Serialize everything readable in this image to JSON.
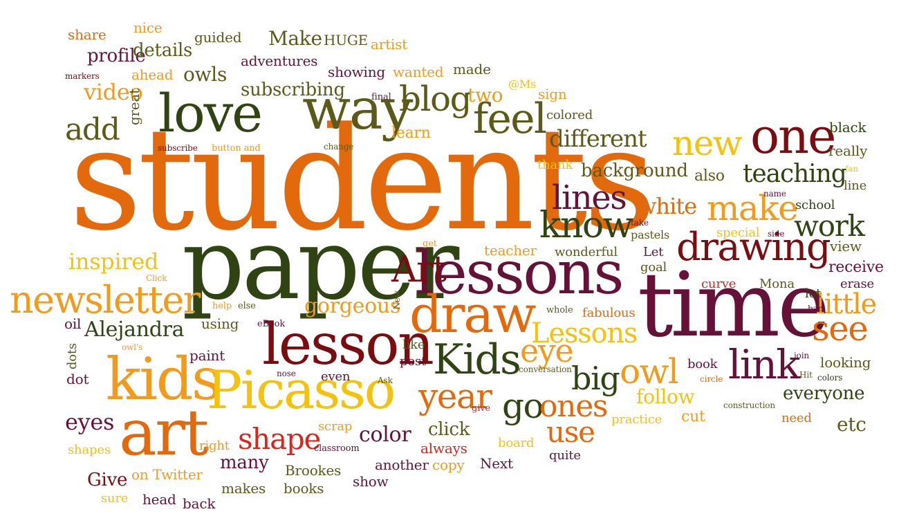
{
  "palette": {
    "orange": "#e36a0c",
    "amber": "#f19a1c",
    "yellow": "#f4c20c",
    "maroon": "#661238",
    "darkred": "#7a0d10",
    "olive": "#5c5a18",
    "darkgreen": "#2f4412",
    "red": "#d8261c"
  },
  "words": [
    {
      "t": "students",
      "c": "#e36a0c"
    },
    {
      "t": "paper",
      "c": "#2f4412"
    },
    {
      "t": "time",
      "c": "#661238"
    },
    {
      "t": "lessons",
      "c": "#661238"
    },
    {
      "t": "lesson",
      "c": "#7a0d10"
    },
    {
      "t": "art",
      "c": "#e36a0c"
    },
    {
      "t": "kids",
      "c": "#f19a1c"
    },
    {
      "t": "Picasso",
      "c": "#f4c20c"
    },
    {
      "t": "love",
      "c": "#2f4412"
    },
    {
      "t": "way",
      "c": "#5c5a18"
    },
    {
      "t": "draw",
      "c": "#e36a0c"
    },
    {
      "t": "drawing",
      "c": "#7a0d10"
    },
    {
      "t": "one",
      "c": "#7a0d10"
    },
    {
      "t": "Kids",
      "c": "#2f4412"
    },
    {
      "t": "Art",
      "c": "#7a0d10"
    },
    {
      "t": "newsletter",
      "c": "#f19a1c"
    },
    {
      "t": "blog",
      "c": "#5c5a18"
    },
    {
      "t": "feel",
      "c": "#5c5a18"
    },
    {
      "t": "new",
      "c": "#f4c20c"
    },
    {
      "t": "make",
      "c": "#f19a1c"
    },
    {
      "t": "know",
      "c": "#2f4412"
    },
    {
      "t": "link",
      "c": "#661238"
    },
    {
      "t": "lines",
      "c": "#661238"
    },
    {
      "t": "owl",
      "c": "#f19a1c"
    },
    {
      "t": "year",
      "c": "#e36a0c"
    },
    {
      "t": "go",
      "c": "#2f4412"
    },
    {
      "t": "ones",
      "c": "#e36a0c"
    },
    {
      "t": "see",
      "c": "#e36a0c"
    },
    {
      "t": "eye",
      "c": "#f19a1c"
    },
    {
      "t": "big",
      "c": "#2f4412"
    },
    {
      "t": "shape",
      "c": "#d8261c"
    },
    {
      "t": "Lessons",
      "c": "#f4c20c"
    },
    {
      "t": "little",
      "c": "#f19a1c"
    },
    {
      "t": "work",
      "c": "#2f4412"
    },
    {
      "t": "add",
      "c": "#5c5a18"
    },
    {
      "t": "use",
      "c": "#e36a0c"
    },
    {
      "t": "teaching",
      "c": "#2f4412"
    },
    {
      "t": "white",
      "c": "#e36a0c"
    },
    {
      "t": "different",
      "c": "#5c5a18"
    },
    {
      "t": "video",
      "c": "#f19a1c"
    },
    {
      "t": "inspired",
      "c": "#f4c20c"
    },
    {
      "t": "Alejandra",
      "c": "#2f4412"
    },
    {
      "t": "gorgeous",
      "c": "#f19a1c"
    },
    {
      "t": "eyes",
      "c": "#661238"
    },
    {
      "t": "color",
      "c": "#661238"
    },
    {
      "t": "background",
      "c": "#5c5a18"
    },
    {
      "t": "follow",
      "c": "#f4c20c"
    },
    {
      "t": "everyone",
      "c": "#2f4412"
    },
    {
      "t": "receive",
      "c": "#661238"
    },
    {
      "t": "owls",
      "c": "#5c5a18"
    },
    {
      "t": "subscribing",
      "c": "#5c5a18"
    },
    {
      "t": "profile",
      "c": "#661238"
    },
    {
      "t": "details",
      "c": "#5c5a18"
    },
    {
      "t": "Make",
      "c": "#5c5a18"
    },
    {
      "t": "HUGE",
      "c": "#5c5a18"
    },
    {
      "t": "artist",
      "c": "#f19a1c"
    },
    {
      "t": "share",
      "c": "#e36a0c"
    },
    {
      "t": "nice",
      "c": "#f19a1c"
    },
    {
      "t": "guided",
      "c": "#5c5a18"
    },
    {
      "t": "adventures",
      "c": "#661238"
    },
    {
      "t": "showing",
      "c": "#661238"
    },
    {
      "t": "wanted",
      "c": "#f19a1c"
    },
    {
      "t": "made",
      "c": "#5c5a18"
    },
    {
      "t": "markers",
      "c": "#7a0d10"
    },
    {
      "t": "ahead",
      "c": "#f19a1c"
    },
    {
      "t": "final",
      "c": "#661238"
    },
    {
      "t": "two",
      "c": "#f19a1c"
    },
    {
      "t": "@Ms",
      "c": "#f4c20c"
    },
    {
      "t": "sign",
      "c": "#f19a1c"
    },
    {
      "t": "great",
      "c": "#5c5a18"
    },
    {
      "t": "learn",
      "c": "#f19a1c"
    },
    {
      "t": "colored",
      "c": "#5c5a18"
    },
    {
      "t": "subscribe",
      "c": "#7a0d10"
    },
    {
      "t": "button and",
      "c": "#f19a1c"
    },
    {
      "t": "change",
      "c": "#5c5a18"
    },
    {
      "t": "black",
      "c": "#2f4412"
    },
    {
      "t": "really",
      "c": "#5c5a18"
    },
    {
      "t": "thank",
      "c": "#f4c20c"
    },
    {
      "t": "also",
      "c": "#5c5a18"
    },
    {
      "t": "fan",
      "c": "#f4c20c"
    },
    {
      "t": "line",
      "c": "#5c5a18"
    },
    {
      "t": "name",
      "c": "#661238"
    },
    {
      "t": "school",
      "c": "#2f4412"
    },
    {
      "t": "take",
      "c": "#661238"
    },
    {
      "t": "pastels",
      "c": "#5c5a18"
    },
    {
      "t": "special",
      "c": "#f4c20c"
    },
    {
      "t": "side",
      "c": "#661238"
    },
    {
      "t": "get",
      "c": "#f19a1c"
    },
    {
      "t": "teacher",
      "c": "#f19a1c"
    },
    {
      "t": "wonderful",
      "c": "#5c5a18"
    },
    {
      "t": "Let",
      "c": "#661238"
    },
    {
      "t": "goal",
      "c": "#5c5a18"
    },
    {
      "t": "view",
      "c": "#5c5a18"
    },
    {
      "t": "Click",
      "c": "#f19a1c"
    },
    {
      "t": "New",
      "c": "#5c5a18"
    },
    {
      "t": "curve",
      "c": "#d8261c"
    },
    {
      "t": "Mona",
      "c": "#5c5a18"
    },
    {
      "t": "erase",
      "c": "#661238"
    },
    {
      "t": "let",
      "c": "#2f4412"
    },
    {
      "t": "bar",
      "c": "#661238"
    },
    {
      "t": "fabulous",
      "c": "#e36a0c"
    },
    {
      "t": "whole",
      "c": "#5c5a18"
    },
    {
      "t": "help",
      "c": "#f19a1c"
    },
    {
      "t": "else",
      "c": "#5c5a18"
    },
    {
      "t": "oil",
      "c": "#661238"
    },
    {
      "t": "using",
      "c": "#5c5a18"
    },
    {
      "t": "eBook",
      "c": "#661238"
    },
    {
      "t": "owl's",
      "c": "#f19a1c"
    },
    {
      "t": "dots",
      "c": "#5c5a18"
    },
    {
      "t": "paint",
      "c": "#661238"
    },
    {
      "t": "like",
      "c": "#5c5a18"
    },
    {
      "t": "post",
      "c": "#661238"
    },
    {
      "t": "conversation",
      "c": "#5c5a18"
    },
    {
      "t": "book",
      "c": "#661238"
    },
    {
      "t": "join",
      "c": "#661238"
    },
    {
      "t": "looking",
      "c": "#5c5a18"
    },
    {
      "t": "Hit",
      "c": "#5c5a18"
    },
    {
      "t": "colors",
      "c": "#2f4412"
    },
    {
      "t": "circle",
      "c": "#e36a0c"
    },
    {
      "t": "dot",
      "c": "#661238"
    },
    {
      "t": "nose",
      "c": "#661238"
    },
    {
      "t": "even",
      "c": "#661238"
    },
    {
      "t": "Ask",
      "c": "#5c5a18"
    },
    {
      "t": "give",
      "c": "#d8261c"
    },
    {
      "t": "construction",
      "c": "#5c5a18"
    },
    {
      "t": "practice",
      "c": "#f4c20c"
    },
    {
      "t": "cut",
      "c": "#f19a1c"
    },
    {
      "t": "etc",
      "c": "#5c5a18"
    },
    {
      "t": "need",
      "c": "#e36a0c"
    },
    {
      "t": "click",
      "c": "#5c5a18"
    },
    {
      "t": "scrap",
      "c": "#f19a1c"
    },
    {
      "t": "right",
      "c": "#f19a1c"
    },
    {
      "t": "classroom",
      "c": "#661238"
    },
    {
      "t": "always",
      "c": "#d8261c"
    },
    {
      "t": "board",
      "c": "#f4c20c"
    },
    {
      "t": "quite",
      "c": "#661238"
    },
    {
      "t": "shapes",
      "c": "#f4c20c"
    },
    {
      "t": "many",
      "c": "#661238"
    },
    {
      "t": "another",
      "c": "#661238"
    },
    {
      "t": "copy",
      "c": "#f19a1c"
    },
    {
      "t": "Next",
      "c": "#661238"
    },
    {
      "t": "Give",
      "c": "#7a0d10"
    },
    {
      "t": "on Twitter",
      "c": "#f19a1c"
    },
    {
      "t": "Brookes",
      "c": "#5c5a18"
    },
    {
      "t": "show",
      "c": "#661238"
    },
    {
      "t": "sure",
      "c": "#f4c20c"
    },
    {
      "t": "head",
      "c": "#661238"
    },
    {
      "t": "makes",
      "c": "#5c5a18"
    },
    {
      "t": "books",
      "c": "#5c5a18"
    },
    {
      "t": "back",
      "c": "#661238"
    }
  ]
}
